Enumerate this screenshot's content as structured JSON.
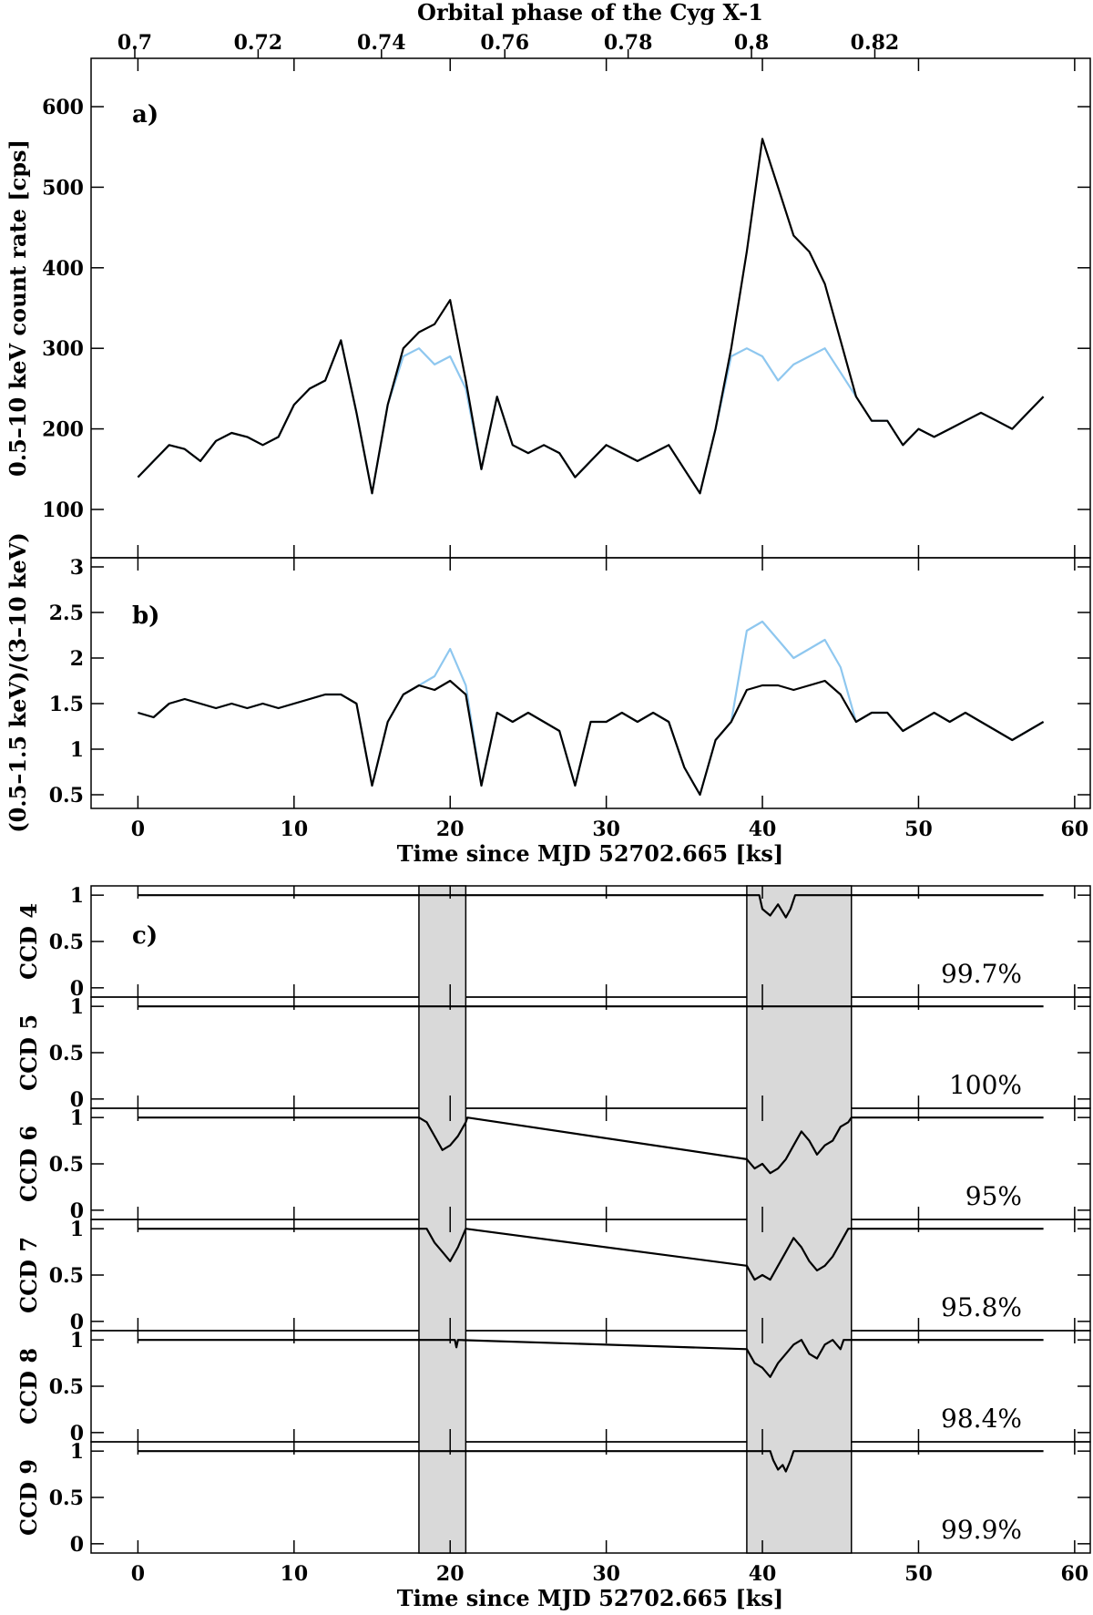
{
  "chart_data": [
    {
      "id": "a",
      "type": "line",
      "panel_label": "a)",
      "top_axis_title": "Orbital phase of the Cyg X-1",
      "top_ticks": [
        "0.7",
        "0.72",
        "0.74",
        "0.76",
        "0.78",
        "0.8",
        "0.82"
      ],
      "ylabel": "0.5–10 keV count rate [cps]",
      "xlim": [
        -3,
        61
      ],
      "ylim": [
        40,
        660
      ],
      "yticks": [
        100,
        200,
        300,
        400,
        500,
        600
      ],
      "series": [
        {
          "color": "#8ec7ef",
          "x": [
            0,
            1,
            2,
            3,
            4,
            5,
            6,
            7,
            8,
            9,
            10,
            11,
            12,
            13,
            14,
            15,
            16,
            17,
            18,
            19,
            20,
            21,
            22,
            23,
            24,
            25,
            26,
            27,
            28,
            29,
            30,
            31,
            32,
            33,
            34,
            35,
            36,
            37,
            38,
            39,
            40,
            41,
            42,
            43,
            44,
            45,
            46,
            47,
            48,
            49,
            50,
            51,
            52,
            53,
            54,
            55,
            56,
            57,
            58
          ],
          "values": [
            140,
            160,
            180,
            175,
            160,
            185,
            195,
            190,
            180,
            190,
            230,
            250,
            260,
            310,
            220,
            120,
            230,
            290,
            300,
            280,
            290,
            250,
            150,
            240,
            180,
            170,
            180,
            170,
            140,
            160,
            180,
            170,
            160,
            170,
            180,
            150,
            120,
            200,
            290,
            300,
            290,
            260,
            280,
            290,
            300,
            270,
            240,
            210,
            210,
            180,
            200,
            190,
            200,
            210,
            220,
            210,
            200,
            220,
            240
          ]
        },
        {
          "color": "#000000",
          "x": [
            0,
            1,
            2,
            3,
            4,
            5,
            6,
            7,
            8,
            9,
            10,
            11,
            12,
            13,
            14,
            15,
            16,
            17,
            18,
            19,
            20,
            21,
            22,
            23,
            24,
            25,
            26,
            27,
            28,
            29,
            30,
            31,
            32,
            33,
            34,
            35,
            36,
            37,
            38,
            39,
            40,
            41,
            42,
            43,
            44,
            45,
            46,
            47,
            48,
            49,
            50,
            51,
            52,
            53,
            54,
            55,
            56,
            57,
            58
          ],
          "values": [
            140,
            160,
            180,
            175,
            160,
            185,
            195,
            190,
            180,
            190,
            230,
            250,
            260,
            310,
            220,
            120,
            230,
            300,
            320,
            330,
            360,
            260,
            150,
            240,
            180,
            170,
            180,
            170,
            140,
            160,
            180,
            170,
            160,
            170,
            180,
            150,
            120,
            200,
            300,
            420,
            560,
            500,
            440,
            420,
            380,
            310,
            240,
            210,
            210,
            180,
            200,
            190,
            200,
            210,
            220,
            210,
            200,
            220,
            240
          ]
        }
      ]
    },
    {
      "id": "b",
      "type": "line",
      "panel_label": "b)",
      "ylabel": "(0.5–1.5 keV)/(3–10 keV)",
      "xlabel": "Time since MJD 52702.665 [ks]",
      "xticks": [
        0,
        10,
        20,
        30,
        40,
        50,
        60
      ],
      "xlim": [
        -3,
        61
      ],
      "ylim": [
        0.35,
        3.1
      ],
      "yticks": [
        0.5,
        1,
        1.5,
        2,
        2.5,
        3
      ],
      "series": [
        {
          "color": "#8ec7ef",
          "x": [
            0,
            1,
            2,
            3,
            4,
            5,
            6,
            7,
            8,
            9,
            10,
            11,
            12,
            13,
            14,
            15,
            16,
            17,
            18,
            19,
            20,
            21,
            22,
            23,
            24,
            25,
            26,
            27,
            28,
            29,
            30,
            31,
            32,
            33,
            34,
            35,
            36,
            37,
            38,
            39,
            40,
            41,
            42,
            43,
            44,
            45,
            46,
            47,
            48,
            49,
            50,
            51,
            52,
            53,
            54,
            55,
            56,
            57,
            58
          ],
          "values": [
            1.4,
            1.35,
            1.5,
            1.55,
            1.5,
            1.45,
            1.5,
            1.45,
            1.5,
            1.45,
            1.5,
            1.55,
            1.6,
            1.6,
            1.5,
            0.6,
            1.3,
            1.6,
            1.7,
            1.8,
            2.1,
            1.7,
            0.6,
            1.4,
            1.3,
            1.4,
            1.3,
            1.2,
            0.6,
            1.3,
            1.3,
            1.4,
            1.3,
            1.4,
            1.3,
            0.8,
            0.5,
            1.1,
            1.3,
            2.3,
            2.4,
            2.2,
            2.0,
            2.1,
            2.2,
            1.9,
            1.3,
            1.4,
            1.4,
            1.2,
            1.3,
            1.4,
            1.3,
            1.4,
            1.3,
            1.2,
            1.1,
            1.2,
            1.3
          ]
        },
        {
          "color": "#000000",
          "x": [
            0,
            1,
            2,
            3,
            4,
            5,
            6,
            7,
            8,
            9,
            10,
            11,
            12,
            13,
            14,
            15,
            16,
            17,
            18,
            19,
            20,
            21,
            22,
            23,
            24,
            25,
            26,
            27,
            28,
            29,
            30,
            31,
            32,
            33,
            34,
            35,
            36,
            37,
            38,
            39,
            40,
            41,
            42,
            43,
            44,
            45,
            46,
            47,
            48,
            49,
            50,
            51,
            52,
            53,
            54,
            55,
            56,
            57,
            58
          ],
          "values": [
            1.4,
            1.35,
            1.5,
            1.55,
            1.5,
            1.45,
            1.5,
            1.45,
            1.5,
            1.45,
            1.5,
            1.55,
            1.6,
            1.6,
            1.5,
            0.6,
            1.3,
            1.6,
            1.7,
            1.65,
            1.75,
            1.6,
            0.6,
            1.4,
            1.3,
            1.4,
            1.3,
            1.2,
            0.6,
            1.3,
            1.3,
            1.4,
            1.3,
            1.4,
            1.3,
            0.8,
            0.5,
            1.1,
            1.3,
            1.65,
            1.7,
            1.7,
            1.65,
            1.7,
            1.75,
            1.6,
            1.3,
            1.4,
            1.4,
            1.2,
            1.3,
            1.4,
            1.3,
            1.4,
            1.3,
            1.2,
            1.1,
            1.2,
            1.3
          ]
        }
      ]
    },
    {
      "id": "c",
      "type": "line",
      "panel_label": "c)",
      "xlabel": "Time since MJD 52702.665 [ks]",
      "xticks": [
        0,
        10,
        20,
        30,
        40,
        50,
        60
      ],
      "xlim": [
        -3,
        61
      ],
      "ylim": [
        -0.1,
        1.1
      ],
      "yticks": [
        0,
        0.5,
        1
      ],
      "shaded_intervals": [
        [
          18,
          21
        ],
        [
          39,
          45.7
        ]
      ],
      "ccds": [
        {
          "label": "CCD 4",
          "percent": "99.7%",
          "x": [
            0,
            39.8,
            40,
            40.5,
            41,
            41.5,
            41.8,
            42,
            42.1,
            58
          ],
          "values": [
            1,
            1,
            0.85,
            0.78,
            0.9,
            0.76,
            0.85,
            0.95,
            1,
            1
          ]
        },
        {
          "label": "CCD 5",
          "percent": "100%",
          "x": [
            0,
            58
          ],
          "values": [
            1,
            1
          ]
        },
        {
          "label": "CCD 6",
          "percent": "95%",
          "x": [
            0,
            18,
            18.5,
            19,
            19.5,
            20,
            20.5,
            21,
            21.1,
            39,
            39.5,
            40,
            40.5,
            41,
            41.5,
            42,
            42.5,
            43,
            43.5,
            44,
            44.5,
            45,
            45.5,
            45.7,
            58
          ],
          "values": [
            1,
            1,
            0.95,
            0.8,
            0.65,
            0.7,
            0.8,
            0.95,
            1,
            0.55,
            0.45,
            0.5,
            0.4,
            0.45,
            0.55,
            0.7,
            0.85,
            0.75,
            0.6,
            0.7,
            0.75,
            0.9,
            0.95,
            1,
            1
          ]
        },
        {
          "label": "CCD 7",
          "percent": "95.8%",
          "x": [
            0,
            18.5,
            19,
            19.5,
            20,
            20.5,
            21,
            39,
            39.5,
            40,
            40.5,
            41,
            41.5,
            42,
            42.5,
            43,
            43.5,
            44,
            44.5,
            45,
            45.5,
            58
          ],
          "values": [
            1,
            1,
            0.85,
            0.75,
            0.65,
            0.8,
            1,
            0.6,
            0.45,
            0.5,
            0.45,
            0.6,
            0.75,
            0.9,
            0.8,
            0.65,
            0.55,
            0.6,
            0.7,
            0.85,
            1,
            1
          ]
        },
        {
          "label": "CCD 8",
          "percent": "98.4%",
          "x": [
            0,
            20.3,
            20.4,
            20.5,
            39,
            39.5,
            40,
            40.5,
            41,
            41.5,
            42,
            42.5,
            43,
            43.5,
            44,
            44.5,
            45,
            45.2,
            58
          ],
          "values": [
            1,
            1,
            0.92,
            1,
            0.9,
            0.75,
            0.7,
            0.6,
            0.75,
            0.85,
            0.95,
            1,
            0.85,
            0.8,
            0.95,
            1,
            0.9,
            1,
            1
          ]
        },
        {
          "label": "CCD 9",
          "percent": "99.9%",
          "x": [
            0,
            40.5,
            40.7,
            41,
            41.3,
            41.5,
            41.8,
            42,
            58
          ],
          "values": [
            1,
            1,
            0.9,
            0.8,
            0.85,
            0.78,
            0.9,
            1,
            1
          ]
        }
      ]
    }
  ]
}
